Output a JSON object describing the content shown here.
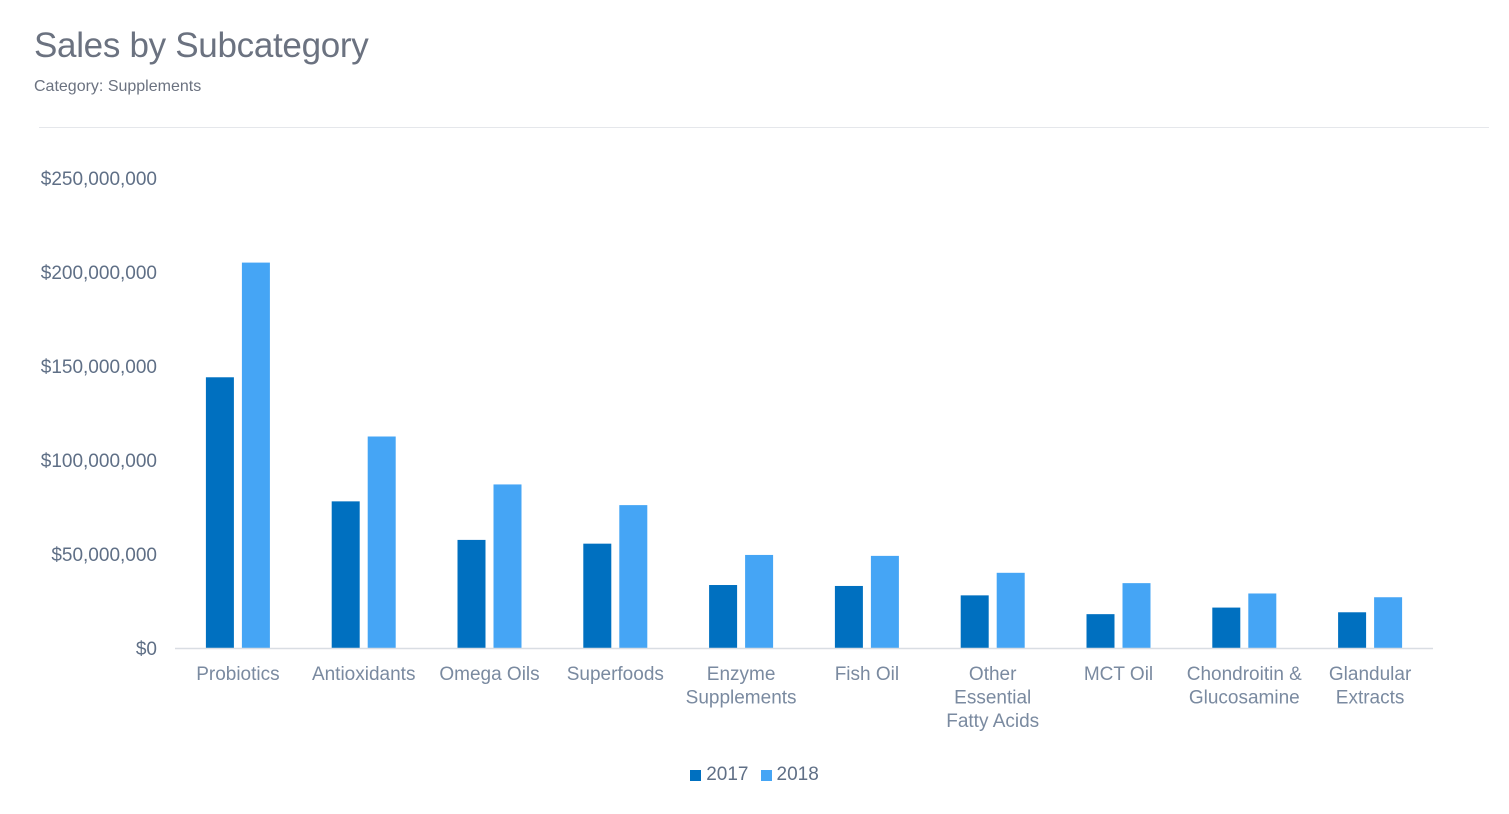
{
  "chart_data": {
    "type": "bar",
    "title": "Sales by Subcategory",
    "subtitle": "Category: Supplements",
    "categories": [
      [
        "Probiotics"
      ],
      [
        "Antioxidants"
      ],
      [
        "Omega Oils"
      ],
      [
        "Superfoods"
      ],
      [
        "Enzyme",
        "Supplements"
      ],
      [
        "Fish Oil"
      ],
      [
        "Other",
        "Essential",
        "Fatty Acids"
      ],
      [
        "MCT Oil"
      ],
      [
        "Chondroitin &",
        "Glucosamine"
      ],
      [
        "Glandular",
        "Extracts"
      ]
    ],
    "series": [
      {
        "name": "2017",
        "color": "#0070c0",
        "values": [
          144000000,
          78000000,
          57500000,
          55500000,
          33500000,
          33000000,
          28000000,
          18000000,
          21500000,
          19000000
        ]
      },
      {
        "name": "2018",
        "color": "#45a5f5",
        "values": [
          205000000,
          112500000,
          87000000,
          76000000,
          49500000,
          49000000,
          40000000,
          34500000,
          29000000,
          27000000
        ]
      }
    ],
    "yticks": [
      "$0",
      "$50,000,000",
      "$100,000,000",
      "$150,000,000",
      "$200,000,000",
      "$250,000,000"
    ],
    "ylim": [
      0,
      250000000
    ],
    "xlabel": "",
    "ylabel": "",
    "grid": false,
    "legend_position": "bottom-center"
  }
}
